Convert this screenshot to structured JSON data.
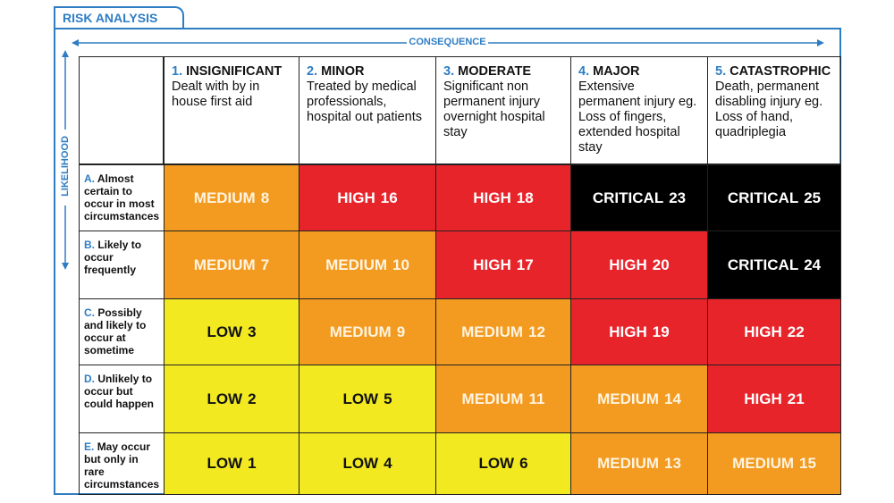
{
  "header": {
    "title": "RISK ANALYSIS",
    "x_axis": "CONSEQUENCE",
    "y_axis": "LIKELIHOOD"
  },
  "level_colors": {
    "LOW": "#f2e921",
    "MEDIUM": "#f39a20",
    "HIGH": "#e8242b",
    "CRITICAL": "#000000"
  },
  "text_colors": {
    "LOW": "#111111",
    "MEDIUM": "#fff4e0",
    "HIGH": "#ffffff",
    "CRITICAL": "#ffffff"
  },
  "columns": [
    {
      "number": "1.",
      "title": "INSIGNIFICANT",
      "description": "Dealt with by in house first aid"
    },
    {
      "number": "2.",
      "title": "MINOR",
      "description": "Treated by medical professionals, hospital out patients"
    },
    {
      "number": "3.",
      "title": "MODERATE",
      "description": "Significant non permanent injury overnight hospital stay"
    },
    {
      "number": "4.",
      "title": "MAJOR",
      "description": "Extensive permanent injury  eg. Loss of fingers, extended hospital stay"
    },
    {
      "number": "5.",
      "title": "CATASTROPHIC",
      "description": "Death, permanent disabling injury eg. Loss of hand, quadriplegia"
    }
  ],
  "rows": [
    {
      "letter": "A.",
      "text": "Almost certain to occur in most circumstances",
      "cells": [
        {
          "level": "MEDIUM",
          "score": 8
        },
        {
          "level": "HIGH",
          "score": 16
        },
        {
          "level": "HIGH",
          "score": 18
        },
        {
          "level": "CRITICAL",
          "score": 23
        },
        {
          "level": "CRITICAL",
          "score": 25
        }
      ]
    },
    {
      "letter": "B.",
      "text": "Likely to occur frequently",
      "cells": [
        {
          "level": "MEDIUM",
          "score": 7
        },
        {
          "level": "MEDIUM",
          "score": 10
        },
        {
          "level": "HIGH",
          "score": 17
        },
        {
          "level": "HIGH",
          "score": 20
        },
        {
          "level": "CRITICAL",
          "score": 24
        }
      ]
    },
    {
      "letter": "C.",
      "text": "Possibly and likely to occur at sometime",
      "cells": [
        {
          "level": "LOW",
          "score": 3
        },
        {
          "level": "MEDIUM",
          "score": 9
        },
        {
          "level": "MEDIUM",
          "score": 12
        },
        {
          "level": "HIGH",
          "score": 19
        },
        {
          "level": "HIGH",
          "score": 22
        }
      ]
    },
    {
      "letter": "D.",
      "text": "Unlikely to occur but could happen",
      "cells": [
        {
          "level": "LOW",
          "score": 2
        },
        {
          "level": "LOW",
          "score": 5
        },
        {
          "level": "MEDIUM",
          "score": 11
        },
        {
          "level": "MEDIUM",
          "score": 14
        },
        {
          "level": "HIGH",
          "score": 21
        }
      ]
    },
    {
      "letter": "E.",
      "text": "May occur but only in rare circumstances",
      "cells": [
        {
          "level": "LOW",
          "score": 1
        },
        {
          "level": "LOW",
          "score": 4
        },
        {
          "level": "LOW",
          "score": 6
        },
        {
          "level": "MEDIUM",
          "score": 13
        },
        {
          "level": "MEDIUM",
          "score": 15
        }
      ]
    }
  ]
}
